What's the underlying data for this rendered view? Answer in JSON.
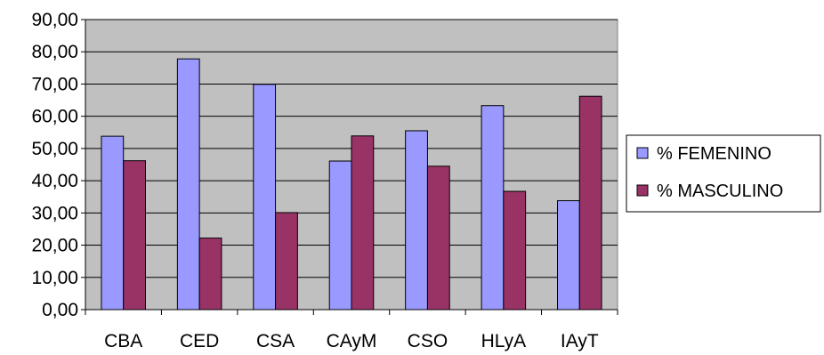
{
  "chart_data": {
    "type": "bar",
    "title": "",
    "xlabel": "",
    "ylabel": "",
    "categories": [
      "CBA",
      "CED",
      "CSA",
      "CAyM",
      "CSO",
      "HLyA",
      "IAyT"
    ],
    "series": [
      {
        "name": "% FEMENINO",
        "color": "#9999ff",
        "values": [
          53.8,
          77.8,
          69.9,
          46.1,
          55.5,
          63.3,
          33.8
        ]
      },
      {
        "name": "% MASCULINO",
        "color": "#993366",
        "values": [
          46.2,
          22.2,
          30.1,
          53.9,
          44.5,
          36.7,
          66.2
        ]
      }
    ],
    "ylim": [
      0,
      90
    ],
    "ytick_labels": [
      "0,00",
      "10,00",
      "20,00",
      "30,00",
      "40,00",
      "50,00",
      "60,00",
      "70,00",
      "80,00",
      "90,00"
    ],
    "grid": true,
    "plot_background": "#c0c0c0",
    "legend_position": "right"
  }
}
